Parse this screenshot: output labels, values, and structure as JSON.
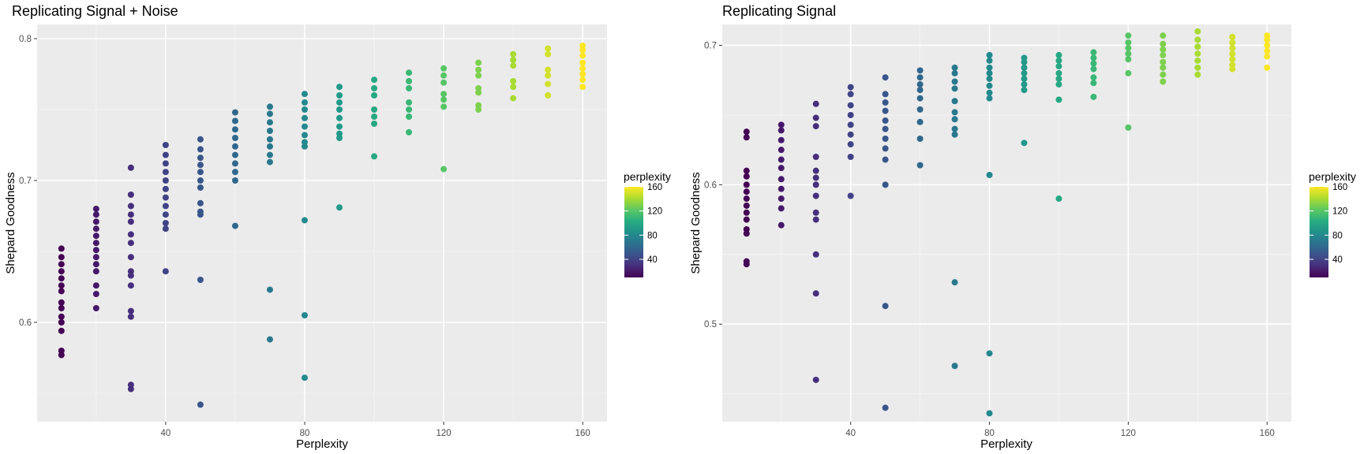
{
  "chart_data": [
    {
      "type": "scatter",
      "title": "Replicating Signal + Noise",
      "xlabel": "Perplexity",
      "ylabel": "Shepard Goodness",
      "xlim": [
        3,
        167
      ],
      "ylim": [
        0.53,
        0.81
      ],
      "x_ticks": [
        40,
        80,
        120,
        160
      ],
      "y_ticks": [
        0.6,
        0.7,
        0.8
      ],
      "grid": true,
      "legend": {
        "title": "perplexity",
        "position": "right",
        "ticks": [
          40,
          80,
          120,
          160
        ],
        "range": [
          10,
          160
        ]
      },
      "points": [
        [
          10,
          0.652
        ],
        [
          10,
          0.646
        ],
        [
          10,
          0.641
        ],
        [
          10,
          0.636
        ],
        [
          10,
          0.631
        ],
        [
          10,
          0.626
        ],
        [
          10,
          0.622
        ],
        [
          10,
          0.614
        ],
        [
          10,
          0.61
        ],
        [
          10,
          0.604
        ],
        [
          10,
          0.6
        ],
        [
          10,
          0.594
        ],
        [
          10,
          0.58
        ],
        [
          10,
          0.577
        ],
        [
          20,
          0.68
        ],
        [
          20,
          0.676
        ],
        [
          20,
          0.671
        ],
        [
          20,
          0.666
        ],
        [
          20,
          0.661
        ],
        [
          20,
          0.656
        ],
        [
          20,
          0.651
        ],
        [
          20,
          0.646
        ],
        [
          20,
          0.641
        ],
        [
          20,
          0.636
        ],
        [
          20,
          0.626
        ],
        [
          20,
          0.62
        ],
        [
          20,
          0.61
        ],
        [
          30,
          0.709
        ],
        [
          30,
          0.69
        ],
        [
          30,
          0.682
        ],
        [
          30,
          0.676
        ],
        [
          30,
          0.671
        ],
        [
          30,
          0.662
        ],
        [
          30,
          0.656
        ],
        [
          30,
          0.646
        ],
        [
          30,
          0.636
        ],
        [
          30,
          0.633
        ],
        [
          30,
          0.626
        ],
        [
          30,
          0.608
        ],
        [
          30,
          0.604
        ],
        [
          30,
          0.556
        ],
        [
          30,
          0.553
        ],
        [
          40,
          0.725
        ],
        [
          40,
          0.718
        ],
        [
          40,
          0.712
        ],
        [
          40,
          0.706
        ],
        [
          40,
          0.7
        ],
        [
          40,
          0.694
        ],
        [
          40,
          0.688
        ],
        [
          40,
          0.682
        ],
        [
          40,
          0.676
        ],
        [
          40,
          0.67
        ],
        [
          40,
          0.666
        ],
        [
          40,
          0.636
        ],
        [
          50,
          0.729
        ],
        [
          50,
          0.722
        ],
        [
          50,
          0.716
        ],
        [
          50,
          0.711
        ],
        [
          50,
          0.706
        ],
        [
          50,
          0.7
        ],
        [
          50,
          0.695
        ],
        [
          50,
          0.684
        ],
        [
          50,
          0.678
        ],
        [
          50,
          0.676
        ],
        [
          50,
          0.63
        ],
        [
          50,
          0.542
        ],
        [
          60,
          0.748
        ],
        [
          60,
          0.742
        ],
        [
          60,
          0.736
        ],
        [
          60,
          0.73
        ],
        [
          60,
          0.724
        ],
        [
          60,
          0.718
        ],
        [
          60,
          0.712
        ],
        [
          60,
          0.706
        ],
        [
          60,
          0.7
        ],
        [
          60,
          0.668
        ],
        [
          70,
          0.752
        ],
        [
          70,
          0.747
        ],
        [
          70,
          0.741
        ],
        [
          70,
          0.735
        ],
        [
          70,
          0.729
        ],
        [
          70,
          0.724
        ],
        [
          70,
          0.718
        ],
        [
          70,
          0.713
        ],
        [
          70,
          0.623
        ],
        [
          70,
          0.588
        ],
        [
          80,
          0.761
        ],
        [
          80,
          0.755
        ],
        [
          80,
          0.75
        ],
        [
          80,
          0.744
        ],
        [
          80,
          0.738
        ],
        [
          80,
          0.732
        ],
        [
          80,
          0.727
        ],
        [
          80,
          0.724
        ],
        [
          80,
          0.672
        ],
        [
          80,
          0.605
        ],
        [
          80,
          0.561
        ],
        [
          90,
          0.766
        ],
        [
          90,
          0.76
        ],
        [
          90,
          0.755
        ],
        [
          90,
          0.75
        ],
        [
          90,
          0.744
        ],
        [
          90,
          0.738
        ],
        [
          90,
          0.733
        ],
        [
          90,
          0.73
        ],
        [
          90,
          0.681
        ],
        [
          100,
          0.771
        ],
        [
          100,
          0.765
        ],
        [
          100,
          0.76
        ],
        [
          100,
          0.75
        ],
        [
          100,
          0.745
        ],
        [
          100,
          0.74
        ],
        [
          100,
          0.717
        ],
        [
          110,
          0.776
        ],
        [
          110,
          0.77
        ],
        [
          110,
          0.765
        ],
        [
          110,
          0.755
        ],
        [
          110,
          0.75
        ],
        [
          110,
          0.745
        ],
        [
          110,
          0.734
        ],
        [
          120,
          0.779
        ],
        [
          120,
          0.774
        ],
        [
          120,
          0.769
        ],
        [
          120,
          0.761
        ],
        [
          120,
          0.757
        ],
        [
          120,
          0.752
        ],
        [
          120,
          0.708
        ],
        [
          130,
          0.783
        ],
        [
          130,
          0.778
        ],
        [
          130,
          0.774
        ],
        [
          130,
          0.765
        ],
        [
          130,
          0.762
        ],
        [
          130,
          0.753
        ],
        [
          130,
          0.75
        ],
        [
          140,
          0.789
        ],
        [
          140,
          0.785
        ],
        [
          140,
          0.781
        ],
        [
          140,
          0.77
        ],
        [
          140,
          0.766
        ],
        [
          140,
          0.758
        ],
        [
          150,
          0.793
        ],
        [
          150,
          0.789
        ],
        [
          150,
          0.778
        ],
        [
          150,
          0.774
        ],
        [
          150,
          0.768
        ],
        [
          150,
          0.76
        ],
        [
          160,
          0.795
        ],
        [
          160,
          0.792
        ],
        [
          160,
          0.788
        ],
        [
          160,
          0.783
        ],
        [
          160,
          0.779
        ],
        [
          160,
          0.775
        ],
        [
          160,
          0.771
        ],
        [
          160,
          0.766
        ]
      ]
    },
    {
      "type": "scatter",
      "title": "Replicating Signal",
      "xlabel": "Perplexity",
      "ylabel": "Shepard Goodness",
      "xlim": [
        3,
        167
      ],
      "ylim": [
        0.43,
        0.715
      ],
      "x_ticks": [
        40,
        80,
        120,
        160
      ],
      "y_ticks": [
        0.5,
        0.6,
        0.7
      ],
      "grid": true,
      "legend": {
        "title": "perplexity",
        "position": "right",
        "ticks": [
          40,
          80,
          120,
          160
        ],
        "range": [
          10,
          160
        ]
      },
      "points": [
        [
          10,
          0.638
        ],
        [
          10,
          0.634
        ],
        [
          10,
          0.61
        ],
        [
          10,
          0.606
        ],
        [
          10,
          0.6
        ],
        [
          10,
          0.595
        ],
        [
          10,
          0.59
        ],
        [
          10,
          0.585
        ],
        [
          10,
          0.58
        ],
        [
          10,
          0.575
        ],
        [
          10,
          0.568
        ],
        [
          10,
          0.565
        ],
        [
          10,
          0.545
        ],
        [
          10,
          0.543
        ],
        [
          20,
          0.643
        ],
        [
          20,
          0.639
        ],
        [
          20,
          0.632
        ],
        [
          20,
          0.625
        ],
        [
          20,
          0.618
        ],
        [
          20,
          0.612
        ],
        [
          20,
          0.604
        ],
        [
          20,
          0.597
        ],
        [
          20,
          0.59
        ],
        [
          20,
          0.583
        ],
        [
          20,
          0.571
        ],
        [
          30,
          0.658
        ],
        [
          30,
          0.648
        ],
        [
          30,
          0.642
        ],
        [
          30,
          0.62
        ],
        [
          30,
          0.61
        ],
        [
          30,
          0.605
        ],
        [
          30,
          0.6
        ],
        [
          30,
          0.592
        ],
        [
          30,
          0.58
        ],
        [
          30,
          0.575
        ],
        [
          30,
          0.55
        ],
        [
          30,
          0.522
        ],
        [
          30,
          0.46
        ],
        [
          40,
          0.67
        ],
        [
          40,
          0.665
        ],
        [
          40,
          0.657
        ],
        [
          40,
          0.65
        ],
        [
          40,
          0.643
        ],
        [
          40,
          0.636
        ],
        [
          40,
          0.629
        ],
        [
          40,
          0.62
        ],
        [
          40,
          0.592
        ],
        [
          50,
          0.677
        ],
        [
          50,
          0.665
        ],
        [
          50,
          0.659
        ],
        [
          50,
          0.653
        ],
        [
          50,
          0.646
        ],
        [
          50,
          0.64
        ],
        [
          50,
          0.633
        ],
        [
          50,
          0.626
        ],
        [
          50,
          0.618
        ],
        [
          50,
          0.6
        ],
        [
          50,
          0.513
        ],
        [
          50,
          0.44
        ],
        [
          60,
          0.682
        ],
        [
          60,
          0.677
        ],
        [
          60,
          0.672
        ],
        [
          60,
          0.668
        ],
        [
          60,
          0.662
        ],
        [
          60,
          0.654
        ],
        [
          60,
          0.645
        ],
        [
          60,
          0.633
        ],
        [
          60,
          0.614
        ],
        [
          70,
          0.684
        ],
        [
          70,
          0.68
        ],
        [
          70,
          0.674
        ],
        [
          70,
          0.669
        ],
        [
          70,
          0.66
        ],
        [
          70,
          0.652
        ],
        [
          70,
          0.647
        ],
        [
          70,
          0.64
        ],
        [
          70,
          0.636
        ],
        [
          70,
          0.53
        ],
        [
          70,
          0.47
        ],
        [
          80,
          0.693
        ],
        [
          80,
          0.689
        ],
        [
          80,
          0.684
        ],
        [
          80,
          0.68
        ],
        [
          80,
          0.676
        ],
        [
          80,
          0.671
        ],
        [
          80,
          0.666
        ],
        [
          80,
          0.662
        ],
        [
          80,
          0.607
        ],
        [
          80,
          0.479
        ],
        [
          80,
          0.436
        ],
        [
          90,
          0.691
        ],
        [
          90,
          0.688
        ],
        [
          90,
          0.684
        ],
        [
          90,
          0.68
        ],
        [
          90,
          0.676
        ],
        [
          90,
          0.672
        ],
        [
          90,
          0.668
        ],
        [
          90,
          0.63
        ],
        [
          100,
          0.693
        ],
        [
          100,
          0.689
        ],
        [
          100,
          0.685
        ],
        [
          100,
          0.68
        ],
        [
          100,
          0.676
        ],
        [
          100,
          0.672
        ],
        [
          100,
          0.661
        ],
        [
          100,
          0.59
        ],
        [
          110,
          0.695
        ],
        [
          110,
          0.691
        ],
        [
          110,
          0.687
        ],
        [
          110,
          0.683
        ],
        [
          110,
          0.677
        ],
        [
          110,
          0.673
        ],
        [
          110,
          0.663
        ],
        [
          120,
          0.707
        ],
        [
          120,
          0.702
        ],
        [
          120,
          0.698
        ],
        [
          120,
          0.694
        ],
        [
          120,
          0.69
        ],
        [
          120,
          0.68
        ],
        [
          120,
          0.641
        ],
        [
          130,
          0.707
        ],
        [
          130,
          0.701
        ],
        [
          130,
          0.697
        ],
        [
          130,
          0.693
        ],
        [
          130,
          0.688
        ],
        [
          130,
          0.684
        ],
        [
          130,
          0.679
        ],
        [
          130,
          0.674
        ],
        [
          140,
          0.71
        ],
        [
          140,
          0.704
        ],
        [
          140,
          0.699
        ],
        [
          140,
          0.694
        ],
        [
          140,
          0.689
        ],
        [
          140,
          0.684
        ],
        [
          140,
          0.679
        ],
        [
          150,
          0.706
        ],
        [
          150,
          0.702
        ],
        [
          150,
          0.698
        ],
        [
          150,
          0.694
        ],
        [
          150,
          0.69
        ],
        [
          150,
          0.686
        ],
        [
          150,
          0.683
        ],
        [
          160,
          0.707
        ],
        [
          160,
          0.704
        ],
        [
          160,
          0.7
        ],
        [
          160,
          0.696
        ],
        [
          160,
          0.692
        ],
        [
          160,
          0.684
        ]
      ]
    }
  ]
}
